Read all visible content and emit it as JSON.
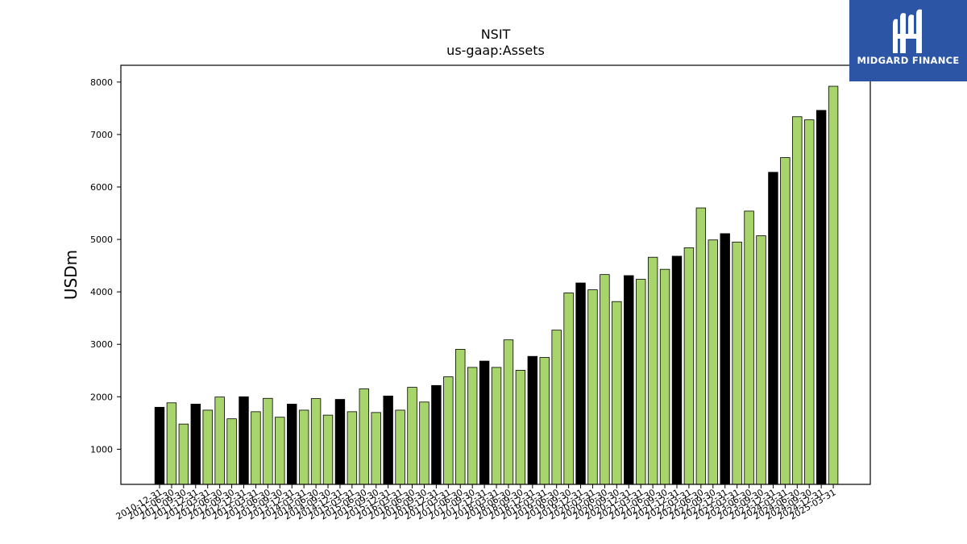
{
  "logo": {
    "text": "MIDGARD FINANCE",
    "bg_color": "#2d55a5"
  },
  "chart_data": {
    "type": "bar",
    "title": "NSIT",
    "subtitle": "us-gaap:Assets",
    "ylabel": "USDm",
    "xlabel": "",
    "ylim": [
      330,
      8320
    ],
    "yticks": [
      1000,
      2000,
      3000,
      4000,
      5000,
      6000,
      7000,
      8000
    ],
    "grid": false,
    "colors": {
      "annual": "#000000",
      "quarterly": "#a8d46c"
    },
    "categories": [
      "2010-12-31",
      "2011-06-30",
      "2011-09-30",
      "2011-12-31",
      "2012-03-31",
      "2012-06-30",
      "2012-09-30",
      "2012-12-31",
      "2013-03-31",
      "2013-06-30",
      "2013-09-30",
      "2013-12-31",
      "2014-03-31",
      "2014-06-30",
      "2014-09-30",
      "2014-12-31",
      "2015-03-31",
      "2015-06-30",
      "2015-09-30",
      "2015-12-31",
      "2016-03-31",
      "2016-06-30",
      "2016-09-30",
      "2016-12-31",
      "2017-03-31",
      "2017-06-30",
      "2017-09-30",
      "2017-12-31",
      "2018-03-31",
      "2018-06-30",
      "2018-09-30",
      "2018-12-31",
      "2019-03-31",
      "2019-06-30",
      "2019-09-30",
      "2019-12-31",
      "2020-03-31",
      "2020-06-30",
      "2020-09-30",
      "2020-12-31",
      "2021-03-31",
      "2021-06-30",
      "2021-09-30",
      "2021-12-31",
      "2022-03-31",
      "2022-06-30",
      "2022-09-30",
      "2022-12-31",
      "2023-03-31",
      "2023-06-30",
      "2023-09-30",
      "2023-12-31",
      "2024-03-31",
      "2024-06-30",
      "2024-09-30",
      "2024-12-31",
      "2025-03-31"
    ],
    "values": [
      1800,
      1885,
      1480,
      1860,
      1745,
      1995,
      1580,
      2000,
      1715,
      1970,
      1610,
      1860,
      1745,
      1965,
      1650,
      1950,
      1715,
      2150,
      1700,
      2015,
      1745,
      2180,
      1900,
      2215,
      2380,
      2905,
      2560,
      2680,
      2560,
      3085,
      2505,
      2770,
      2750,
      3270,
      3980,
      4170,
      4040,
      4330,
      3815,
      4310,
      4240,
      4660,
      4430,
      4680,
      4840,
      5600,
      4990,
      5110,
      4950,
      5540,
      5070,
      6280,
      6560,
      7340,
      7280,
      7460,
      7920
    ],
    "annual": [
      true,
      false,
      false,
      true,
      false,
      false,
      false,
      true,
      false,
      false,
      false,
      true,
      false,
      false,
      false,
      true,
      false,
      false,
      false,
      true,
      false,
      false,
      false,
      true,
      false,
      false,
      false,
      true,
      false,
      false,
      false,
      true,
      false,
      false,
      false,
      true,
      false,
      false,
      false,
      true,
      false,
      false,
      false,
      true,
      false,
      false,
      false,
      true,
      false,
      false,
      false,
      true,
      false,
      false,
      false,
      true,
      false
    ]
  }
}
